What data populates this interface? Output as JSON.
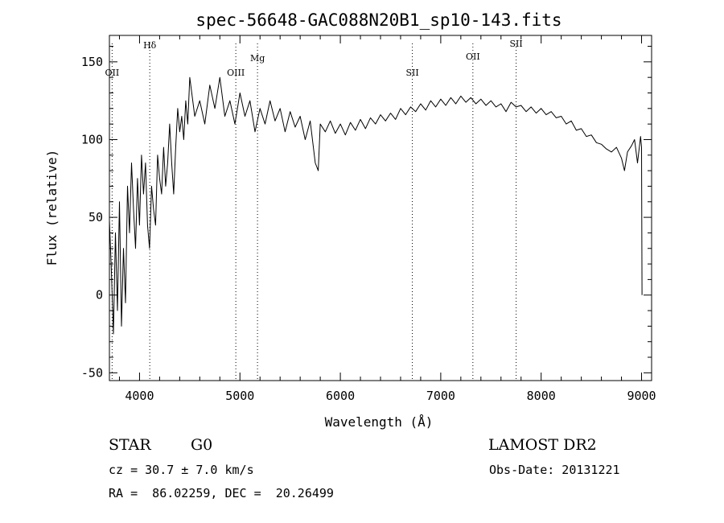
{
  "chart_data": {
    "type": "line",
    "title": "spec-56648-GAC088N20B1_sp10-143.fits",
    "xlabel": "Wavelength (Å)",
    "ylabel": "Flux (relative)",
    "xlim": [
      3700,
      9100
    ],
    "ylim": [
      -55,
      167
    ],
    "xticks": [
      4000,
      5000,
      6000,
      7000,
      8000,
      9000
    ],
    "yticks": [
      -50,
      0,
      50,
      100,
      150
    ],
    "xminor_step": 200,
    "yminor_step": 10,
    "grid": false,
    "line_color": "#000000",
    "series": [
      {
        "values": [
          [
            3700,
            48
          ],
          [
            3720,
            15
          ],
          [
            3740,
            -25
          ],
          [
            3760,
            40
          ],
          [
            3780,
            -10
          ],
          [
            3800,
            60
          ],
          [
            3820,
            -20
          ],
          [
            3840,
            30
          ],
          [
            3860,
            -5
          ],
          [
            3880,
            70
          ],
          [
            3900,
            40
          ],
          [
            3920,
            85
          ],
          [
            3940,
            55
          ],
          [
            3960,
            30
          ],
          [
            3980,
            75
          ],
          [
            4000,
            45
          ],
          [
            4020,
            90
          ],
          [
            4040,
            65
          ],
          [
            4060,
            85
          ],
          [
            4080,
            45
          ],
          [
            4100,
            30
          ],
          [
            4120,
            70
          ],
          [
            4140,
            55
          ],
          [
            4160,
            45
          ],
          [
            4180,
            90
          ],
          [
            4200,
            75
          ],
          [
            4220,
            65
          ],
          [
            4240,
            95
          ],
          [
            4260,
            70
          ],
          [
            4280,
            85
          ],
          [
            4300,
            110
          ],
          [
            4320,
            85
          ],
          [
            4340,
            65
          ],
          [
            4360,
            95
          ],
          [
            4380,
            120
          ],
          [
            4400,
            105
          ],
          [
            4420,
            115
          ],
          [
            4440,
            100
          ],
          [
            4460,
            125
          ],
          [
            4480,
            110
          ],
          [
            4500,
            140
          ],
          [
            4550,
            115
          ],
          [
            4600,
            125
          ],
          [
            4650,
            110
          ],
          [
            4700,
            135
          ],
          [
            4750,
            120
          ],
          [
            4800,
            140
          ],
          [
            4850,
            115
          ],
          [
            4900,
            125
          ],
          [
            4950,
            110
          ],
          [
            5000,
            130
          ],
          [
            5050,
            115
          ],
          [
            5100,
            125
          ],
          [
            5150,
            105
          ],
          [
            5200,
            120
          ],
          [
            5250,
            110
          ],
          [
            5300,
            125
          ],
          [
            5350,
            112
          ],
          [
            5400,
            120
          ],
          [
            5450,
            105
          ],
          [
            5500,
            118
          ],
          [
            5550,
            108
          ],
          [
            5600,
            115
          ],
          [
            5650,
            100
          ],
          [
            5700,
            112
          ],
          [
            5750,
            85
          ],
          [
            5780,
            80
          ],
          [
            5800,
            110
          ],
          [
            5850,
            105
          ],
          [
            5900,
            112
          ],
          [
            5950,
            104
          ],
          [
            6000,
            110
          ],
          [
            6050,
            103
          ],
          [
            6100,
            111
          ],
          [
            6150,
            106
          ],
          [
            6200,
            113
          ],
          [
            6250,
            107
          ],
          [
            6300,
            114
          ],
          [
            6350,
            110
          ],
          [
            6400,
            116
          ],
          [
            6450,
            112
          ],
          [
            6500,
            117
          ],
          [
            6550,
            113
          ],
          [
            6600,
            120
          ],
          [
            6650,
            116
          ],
          [
            6700,
            121
          ],
          [
            6750,
            118
          ],
          [
            6800,
            123
          ],
          [
            6850,
            119
          ],
          [
            6900,
            125
          ],
          [
            6950,
            121
          ],
          [
            7000,
            126
          ],
          [
            7050,
            122
          ],
          [
            7100,
            127
          ],
          [
            7150,
            123
          ],
          [
            7200,
            128
          ],
          [
            7250,
            124
          ],
          [
            7300,
            127
          ],
          [
            7350,
            123
          ],
          [
            7400,
            126
          ],
          [
            7450,
            122
          ],
          [
            7500,
            125
          ],
          [
            7550,
            121
          ],
          [
            7600,
            123
          ],
          [
            7650,
            118
          ],
          [
            7700,
            124
          ],
          [
            7750,
            121
          ],
          [
            7800,
            122
          ],
          [
            7850,
            118
          ],
          [
            7900,
            121
          ],
          [
            7950,
            117
          ],
          [
            8000,
            120
          ],
          [
            8050,
            116
          ],
          [
            8100,
            118
          ],
          [
            8150,
            114
          ],
          [
            8200,
            115
          ],
          [
            8250,
            110
          ],
          [
            8300,
            112
          ],
          [
            8350,
            106
          ],
          [
            8400,
            107
          ],
          [
            8450,
            102
          ],
          [
            8500,
            103
          ],
          [
            8550,
            98
          ],
          [
            8600,
            97
          ],
          [
            8650,
            94
          ],
          [
            8700,
            92
          ],
          [
            8750,
            95
          ],
          [
            8800,
            88
          ],
          [
            8830,
            80
          ],
          [
            8860,
            92
          ],
          [
            8900,
            96
          ],
          [
            8930,
            100
          ],
          [
            8960,
            85
          ],
          [
            8990,
            102
          ],
          [
            9000,
            95
          ],
          [
            9005,
            0
          ]
        ]
      }
    ],
    "annotations": [
      {
        "text": "OII",
        "x": 3727
      },
      {
        "text": "Hδ",
        "x": 4102
      },
      {
        "text": "OIII",
        "x": 4959
      },
      {
        "text": "Mg",
        "x": 5175
      },
      {
        "text": "SII",
        "x": 6717
      },
      {
        "text": "OII",
        "x": 7320
      },
      {
        "text": "SII",
        "x": 7751
      }
    ]
  },
  "info": {
    "object_class": "STAR",
    "subclass": "G0",
    "survey": "LAMOST DR2",
    "cz": "cz = 30.7 ± 7.0 km/s",
    "obs_date": "Obs-Date: 20131221",
    "coords": "RA =  86.02259, DEC =  20.26499"
  }
}
